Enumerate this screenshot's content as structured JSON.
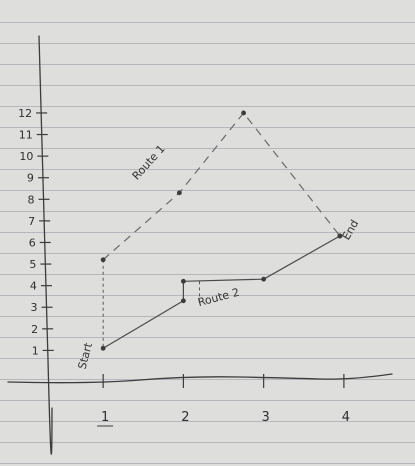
{
  "chart_data": {
    "type": "line",
    "title": "",
    "xlabel": "",
    "ylabel": "",
    "xlim": [
      0.4,
      4.45
    ],
    "ylim": [
      0,
      12.6
    ],
    "x_ticks": [
      "1",
      "2",
      "3",
      "4"
    ],
    "y_ticks": [
      "1",
      "2",
      "3",
      "4",
      "5",
      "6",
      "7",
      "8",
      "9",
      "10",
      "11",
      "12"
    ],
    "grid": false,
    "legend": "none",
    "series": [
      {
        "name": "Route 1",
        "style": "dashed",
        "color": "#6a6a6a",
        "points": [
          {
            "x": 1,
            "y": 5.2
          },
          {
            "x": 1.95,
            "y": 8.3
          },
          {
            "x": 2.75,
            "y": 12
          },
          {
            "x": 3.95,
            "y": 6.3
          }
        ]
      },
      {
        "name": "Route 2",
        "style": "solid",
        "color": "#4a4a4a",
        "points": [
          {
            "x": 1,
            "y": 1.1
          },
          {
            "x": 2,
            "y": 3.3
          },
          {
            "x": 2,
            "y": 4.2
          },
          {
            "x": 3,
            "y": 4.3
          },
          {
            "x": 3.95,
            "y": 6.3
          }
        ]
      }
    ],
    "annotations": [
      {
        "text": "Start",
        "x": 0.82,
        "y": 0.7,
        "rotate": -75
      },
      {
        "text": "End",
        "x": 4.12,
        "y": 6.5,
        "rotate": -60
      }
    ],
    "series_labels": [
      {
        "text": "Route 1",
        "x": 1.6,
        "y": 9.6,
        "rotate": -48
      },
      {
        "text": "Route 2",
        "x": 2.45,
        "y": 3.3,
        "rotate": -15
      }
    ]
  }
}
